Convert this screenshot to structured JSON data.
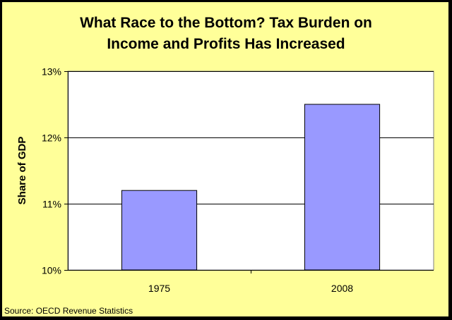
{
  "chart_data": {
    "type": "bar",
    "title_lines": [
      "What Race to the Bottom? Tax Burden on",
      "Income and Profits Has Increased"
    ],
    "categories": [
      "1975",
      "2008"
    ],
    "values": [
      11.2,
      12.5
    ],
    "ylabel": "Share of GDP",
    "xlabel": "",
    "ylim": [
      10,
      13
    ],
    "yticks": [
      10,
      11,
      12,
      13
    ],
    "ytick_labels": [
      "10%",
      "11%",
      "12%",
      "13%"
    ],
    "grid": true,
    "legend": "none",
    "colors": {
      "bar": "#9999ff",
      "plot_bg": "#ffffff",
      "chart_bg": "#ffff99",
      "outer": "#000000"
    }
  },
  "source": "Source: OECD Revenue Statistics"
}
